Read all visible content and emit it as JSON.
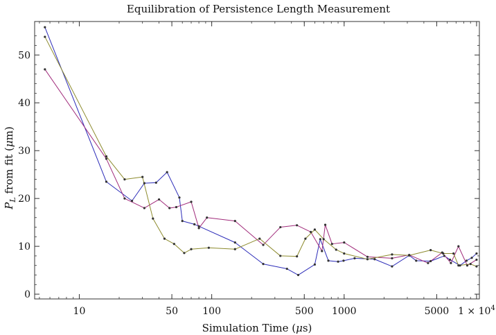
{
  "chart_data": {
    "type": "line",
    "title": "Equilibration of Persistence Length Measurement",
    "xlabel": "Simulation Time (μs)",
    "ylabel": "P_L from fit (μm)",
    "xscale": "log",
    "xlim": [
      4.6,
      10500
    ],
    "ylim": [
      -1,
      57
    ],
    "xticks": [
      {
        "value": 10,
        "label": "10"
      },
      {
        "value": 50,
        "label": "50"
      },
      {
        "value": 100,
        "label": "100"
      },
      {
        "value": 500,
        "label": "500"
      },
      {
        "value": 1000,
        "label": "1000"
      },
      {
        "value": 5000,
        "label": "5000"
      },
      {
        "value": 10000,
        "label": "1 × 10^4"
      }
    ],
    "yticks": [
      0,
      10,
      20,
      30,
      40,
      50
    ],
    "series": [
      {
        "color": "#2b2bb8",
        "points": [
          [
            5.5,
            55.8
          ],
          [
            16,
            23.5
          ],
          [
            25,
            19.5
          ],
          [
            31,
            23.2
          ],
          [
            38,
            23.3
          ],
          [
            46,
            25.5
          ],
          [
            57,
            20.2
          ],
          [
            60,
            15.3
          ],
          [
            74,
            14.6
          ],
          [
            80,
            14.2
          ],
          [
            150,
            10.8
          ],
          [
            245,
            6.3
          ],
          [
            370,
            5.3
          ],
          [
            450,
            4.0
          ],
          [
            600,
            6.2
          ],
          [
            660,
            11.5
          ],
          [
            760,
            7.0
          ],
          [
            900,
            6.8
          ],
          [
            990,
            7.0
          ],
          [
            1200,
            7.5
          ],
          [
            1700,
            7.3
          ],
          [
            2300,
            5.8
          ],
          [
            3100,
            8.1
          ],
          [
            3500,
            7.0
          ],
          [
            4500,
            6.9
          ],
          [
            5700,
            8.0
          ],
          [
            6300,
            7.2
          ],
          [
            7500,
            6.0
          ],
          [
            8400,
            7.0
          ],
          [
            9200,
            7.6
          ],
          [
            10000,
            8.5
          ]
        ]
      },
      {
        "color": "#a02a7a",
        "points": [
          [
            5.5,
            47.0
          ],
          [
            16,
            28.3
          ],
          [
            22,
            20.0
          ],
          [
            31,
            18.0
          ],
          [
            40,
            19.8
          ],
          [
            48,
            18.0
          ],
          [
            54,
            18.2
          ],
          [
            70,
            19.3
          ],
          [
            80,
            13.8
          ],
          [
            92,
            16.0
          ],
          [
            150,
            15.3
          ],
          [
            245,
            10.3
          ],
          [
            330,
            14.0
          ],
          [
            440,
            14.4
          ],
          [
            560,
            13.0
          ],
          [
            680,
            9.0
          ],
          [
            720,
            14.5
          ],
          [
            810,
            10.5
          ],
          [
            1000,
            10.8
          ],
          [
            1500,
            7.8
          ],
          [
            2300,
            7.5
          ],
          [
            3100,
            8.2
          ],
          [
            4300,
            6.5
          ],
          [
            5500,
            8.7
          ],
          [
            6400,
            6.5
          ],
          [
            7300,
            10.0
          ],
          [
            8500,
            6.0
          ],
          [
            10000,
            7.2
          ]
        ]
      },
      {
        "color": "#8c8a2c",
        "points": [
          [
            5.5,
            53.8
          ],
          [
            16,
            28.8
          ],
          [
            22,
            24.0
          ],
          [
            30,
            24.5
          ],
          [
            36,
            15.8
          ],
          [
            44,
            11.6
          ],
          [
            52,
            10.5
          ],
          [
            62,
            8.6
          ],
          [
            70,
            9.4
          ],
          [
            95,
            9.7
          ],
          [
            150,
            9.4
          ],
          [
            230,
            11.6
          ],
          [
            330,
            8.0
          ],
          [
            440,
            7.9
          ],
          [
            510,
            11.6
          ],
          [
            600,
            13.5
          ],
          [
            700,
            11.5
          ],
          [
            870,
            9.3
          ],
          [
            1000,
            8.5
          ],
          [
            1500,
            7.3
          ],
          [
            2300,
            8.3
          ],
          [
            3100,
            8.1
          ],
          [
            4500,
            9.2
          ],
          [
            5600,
            8.5
          ],
          [
            6700,
            8.5
          ],
          [
            7300,
            6.0
          ],
          [
            9000,
            6.3
          ],
          [
            10000,
            5.8
          ]
        ]
      }
    ]
  }
}
